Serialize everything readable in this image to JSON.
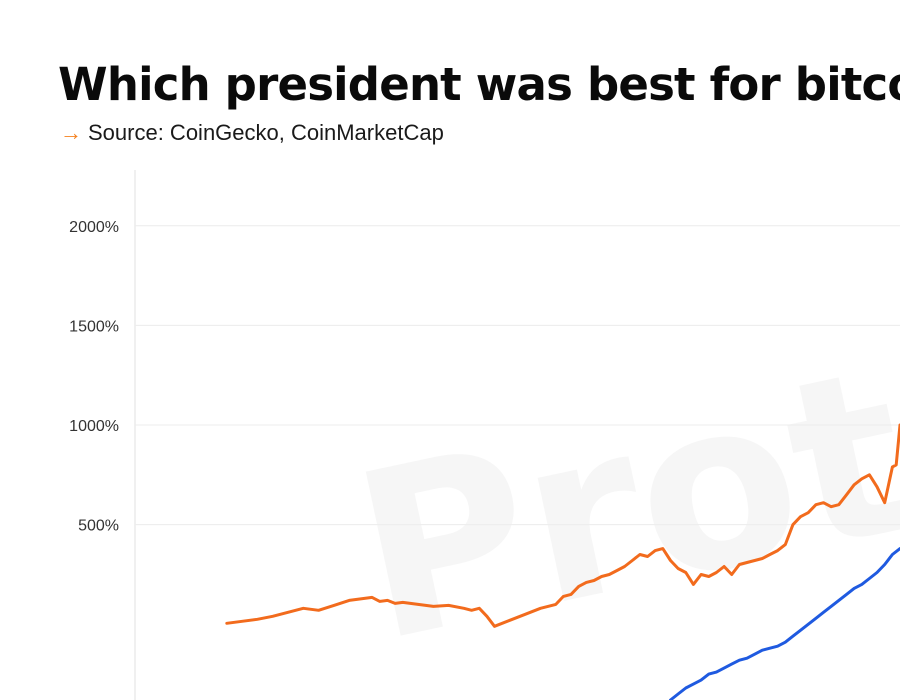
{
  "header": {
    "title": "Which president was best for bitcoin",
    "source_arrow": "→",
    "source": "Source: CoinGecko, CoinMarketCap"
  },
  "watermark": "Protos",
  "colors": {
    "accent": "#f58220",
    "series_orange": "#f26b1d",
    "series_blue": "#1f5ae0",
    "grid": "#ececec"
  },
  "chart_data": {
    "type": "line",
    "title": "Which president was best for bitcoin",
    "subtitle": "Source: CoinGecko, CoinMarketCap",
    "xlabel": "",
    "ylabel": "",
    "ylim": [
      -380,
      2280
    ],
    "xlim": [
      0,
      100
    ],
    "yticks": [
      500,
      1000,
      1500,
      2000
    ],
    "ytick_labels": [
      "500%",
      "1000%",
      "1500%",
      "2000%"
    ],
    "grid": true,
    "series": [
      {
        "color": "#f26b1d",
        "x": [
          12,
          14,
          16,
          18,
          20,
          22,
          24,
          26,
          28,
          30,
          31,
          32,
          33,
          34,
          35,
          37,
          39,
          41,
          43,
          44,
          45,
          46,
          47,
          49,
          51,
          53,
          55,
          56,
          57,
          58,
          59,
          60,
          61,
          62,
          63,
          64,
          65,
          66,
          67,
          68,
          69,
          70,
          71,
          72,
          73,
          74,
          75,
          76,
          77,
          78,
          79,
          80,
          81,
          82,
          83,
          84,
          85,
          86,
          87,
          88,
          89,
          90,
          91,
          92,
          93,
          94,
          95,
          96,
          97,
          98,
          99,
          99.5,
          100
        ],
        "y": [
          5,
          15,
          25,
          40,
          60,
          80,
          70,
          95,
          120,
          130,
          135,
          115,
          120,
          105,
          110,
          100,
          90,
          95,
          80,
          70,
          80,
          40,
          -10,
          20,
          50,
          80,
          100,
          140,
          150,
          190,
          210,
          220,
          240,
          250,
          270,
          290,
          320,
          350,
          340,
          370,
          380,
          320,
          280,
          260,
          200,
          250,
          240,
          260,
          290,
          250,
          300,
          310,
          320,
          330,
          350,
          370,
          400,
          500,
          540,
          560,
          600,
          610,
          590,
          600,
          650,
          700,
          730,
          750,
          690,
          610,
          790,
          800,
          1000
        ]
      },
      {
        "color": "#1f5ae0",
        "x": [
          70,
          71,
          72,
          73,
          74,
          75,
          76,
          77,
          78,
          79,
          80,
          81,
          82,
          83,
          84,
          85,
          86,
          87,
          88,
          89,
          90,
          91,
          92,
          93,
          94,
          95,
          96,
          97,
          98,
          99,
          100
        ],
        "y": [
          -380,
          -350,
          -320,
          -300,
          -280,
          -250,
          -240,
          -220,
          -200,
          -180,
          -170,
          -150,
          -130,
          -120,
          -110,
          -90,
          -60,
          -30,
          0,
          30,
          60,
          90,
          120,
          150,
          180,
          200,
          230,
          260,
          300,
          350,
          380
        ]
      }
    ]
  }
}
